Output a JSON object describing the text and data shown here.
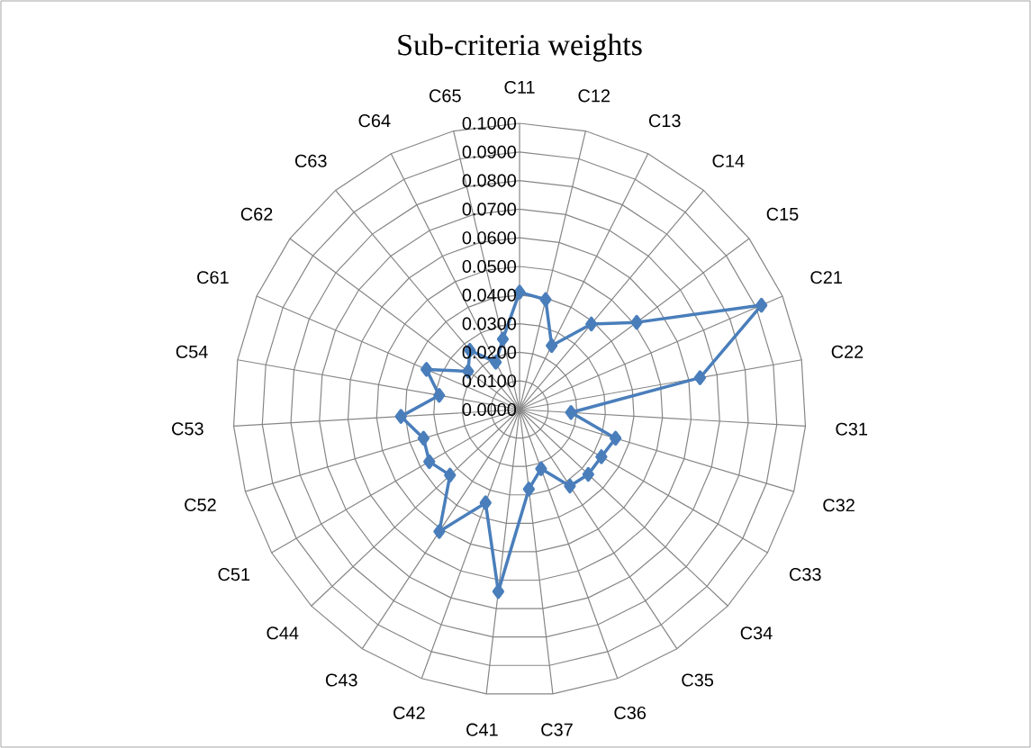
{
  "chart_data": {
    "type": "radar",
    "title": "Sub-criteria weights",
    "categories": [
      "C11",
      "C12",
      "C13",
      "C14",
      "C15",
      "C21",
      "C22",
      "C31",
      "C32",
      "C33",
      "C34",
      "C35",
      "C36",
      "C37",
      "C41",
      "C42",
      "C43",
      "C44",
      "C51",
      "C52",
      "C53",
      "C54",
      "C61",
      "C62",
      "C63",
      "C64",
      "C65"
    ],
    "series": [
      {
        "color": "#4a7ebb",
        "values": [
          0.041,
          0.0395,
          0.025,
          0.039,
          0.051,
          0.092,
          0.064,
          0.018,
          0.035,
          0.033,
          0.033,
          0.032,
          0.022,
          0.028,
          0.064,
          0.0347,
          0.051,
          0.0334,
          0.0364,
          0.035,
          0.0415,
          0.0285,
          0.0354,
          0.0224,
          0.027,
          0.0185,
          0.0253
        ]
      }
    ],
    "ylim": [
      0,
      0.1
    ],
    "yticks": [
      {
        "value": 0,
        "label": "0.0000"
      },
      {
        "value": 0.01,
        "label": "0.0100"
      },
      {
        "value": 0.02,
        "label": "0.0200"
      },
      {
        "value": 0.03,
        "label": "0.0300"
      },
      {
        "value": 0.04,
        "label": "0.0400"
      },
      {
        "value": 0.05,
        "label": "0.0500"
      },
      {
        "value": 0.06,
        "label": "0.0600"
      },
      {
        "value": 0.07,
        "label": "0.0700"
      },
      {
        "value": 0.08,
        "label": "0.0800"
      },
      {
        "value": 0.09,
        "label": "0.0900"
      },
      {
        "value": 0.1,
        "label": "0.1000"
      }
    ],
    "grid": true,
    "marker": "diamond",
    "line_style": "solid"
  }
}
